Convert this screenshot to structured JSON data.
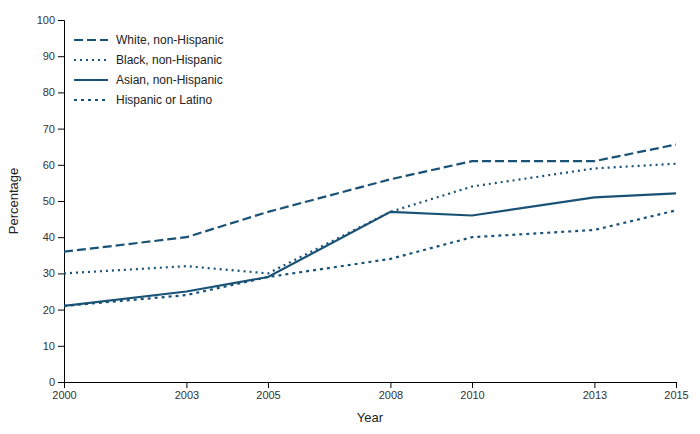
{
  "chart_data": {
    "type": "line",
    "xlabel": "Year",
    "ylabel": "Percentage",
    "x": [
      2000,
      2003,
      2005,
      2008,
      2010,
      2013,
      2015
    ],
    "xlim": [
      2000,
      2015
    ],
    "xticks": [
      2000,
      2003,
      2005,
      2008,
      2010,
      2013,
      2015
    ],
    "ylim": [
      0,
      100
    ],
    "yticks": [
      0,
      10,
      20,
      30,
      40,
      50,
      60,
      70,
      80,
      90,
      100
    ],
    "grid": false,
    "legend": "upper-left",
    "series": [
      {
        "name": "White, non-Hispanic",
        "color": "#1a5276",
        "line_style": "long-dash",
        "values": [
          36,
          40,
          47,
          56,
          61,
          61,
          65.6
        ]
      },
      {
        "name": "Black, non-Hispanic",
        "color": "#1a5276",
        "line_style": "dotted",
        "values": [
          30,
          32,
          30,
          47,
          54,
          59,
          60.3
        ]
      },
      {
        "name": "Asian, non-Hispanic",
        "color": "#1a5276",
        "line_style": "solid",
        "values": [
          21,
          25,
          29,
          47,
          46,
          51,
          52.1
        ]
      },
      {
        "name": "Hispanic or Latino",
        "color": "#1a5276",
        "line_style": "short-dash",
        "values": [
          21,
          24,
          29,
          34,
          40,
          42,
          47.4
        ]
      }
    ]
  }
}
